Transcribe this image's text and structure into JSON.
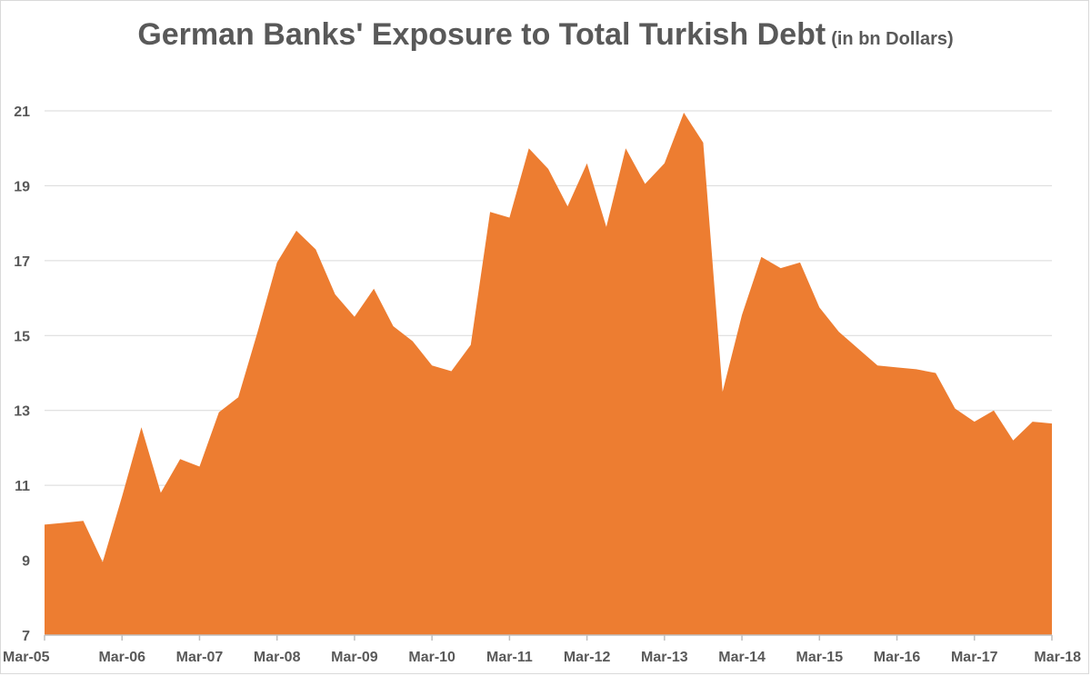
{
  "chart_data": {
    "type": "area",
    "title": "German Banks' Exposure to Total Turkish Debt",
    "subtitle": "(in bn Dollars)",
    "xlabel": "",
    "ylabel": "",
    "ylim": [
      7,
      21
    ],
    "y_ticks": [
      7,
      9,
      11,
      13,
      15,
      17,
      19,
      21
    ],
    "x_tick_labels": [
      "Mar-05",
      "Mar-06",
      "Mar-07",
      "Mar-08",
      "Mar-09",
      "Mar-10",
      "Mar-11",
      "Mar-12",
      "Mar-13",
      "Mar-14",
      "Mar-15",
      "Mar-16",
      "Mar-17",
      "Mar-18"
    ],
    "grid": "horizontal",
    "legend": "none",
    "color": "#ED7D31",
    "series": [
      {
        "x": [
          "Mar-05",
          "Jun-05",
          "Sep-05",
          "Dec-05",
          "Mar-06",
          "Jun-06",
          "Sep-06",
          "Dec-06",
          "Mar-07",
          "Jun-07",
          "Sep-07",
          "Dec-07",
          "Mar-08",
          "Jun-08",
          "Sep-08",
          "Dec-08",
          "Mar-09",
          "Jun-09",
          "Sep-09",
          "Dec-09",
          "Mar-10",
          "Jun-10",
          "Sep-10",
          "Dec-10",
          "Mar-11",
          "Jun-11",
          "Sep-11",
          "Dec-11",
          "Mar-12",
          "Jun-12",
          "Sep-12",
          "Dec-12",
          "Mar-13",
          "Jun-13",
          "Sep-13",
          "Dec-13",
          "Mar-14",
          "Jun-14",
          "Sep-14",
          "Dec-14",
          "Mar-15",
          "Jun-15",
          "Sep-15",
          "Dec-15",
          "Mar-16",
          "Jun-16",
          "Sep-16",
          "Dec-16",
          "Mar-17",
          "Jun-17",
          "Sep-17",
          "Dec-17",
          "Mar-18"
        ],
        "values": [
          9.95,
          10.0,
          10.05,
          8.95,
          10.7,
          12.55,
          10.8,
          11.7,
          11.5,
          12.95,
          13.35,
          15.1,
          16.95,
          17.8,
          17.3,
          16.1,
          15.5,
          16.25,
          15.25,
          14.85,
          14.2,
          14.05,
          14.75,
          18.3,
          18.15,
          20.0,
          19.45,
          18.45,
          19.6,
          17.9,
          20.0,
          19.05,
          19.6,
          20.95,
          20.15,
          13.5,
          15.55,
          17.1,
          16.8,
          16.95,
          15.75,
          15.1,
          14.65,
          14.2,
          14.15,
          14.1,
          14.0,
          13.05,
          12.7,
          13.0,
          12.2,
          12.7,
          12.65
        ]
      }
    ]
  }
}
